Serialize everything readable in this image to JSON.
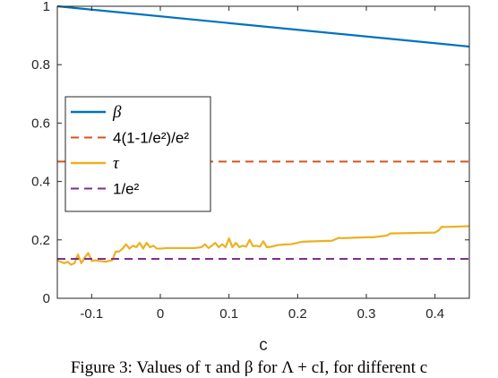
{
  "chart_data": {
    "type": "line",
    "xlabel": "c",
    "ylabel": "",
    "xlim": [
      -0.15,
      0.45
    ],
    "ylim": [
      0,
      1
    ],
    "x_ticks": [
      "-0.1",
      "0",
      "0.1",
      "0.2",
      "0.3",
      "0.4"
    ],
    "y_ticks": [
      "0",
      "0.2",
      "0.4",
      "0.6",
      "0.8",
      "1"
    ],
    "grid": false,
    "legend_position": "middle-left",
    "series": [
      {
        "name": "β",
        "color": "#0072BD",
        "style": "solid",
        "x": [
          -0.15,
          0.45
        ],
        "y": [
          1.0,
          0.862
        ]
      },
      {
        "name": "4(1-1/e²)/e²",
        "color": "#D95319",
        "style": "dashed",
        "x": [
          -0.15,
          0.45
        ],
        "y": [
          0.468,
          0.468
        ]
      },
      {
        "name": "τ",
        "color": "#EDB120",
        "style": "solid",
        "x": [
          -0.15,
          -0.14,
          -0.135,
          -0.13,
          -0.125,
          -0.12,
          -0.115,
          -0.11,
          -0.105,
          -0.1,
          -0.095,
          -0.09,
          -0.085,
          -0.08,
          -0.075,
          -0.07,
          -0.065,
          -0.06,
          -0.055,
          -0.05,
          -0.045,
          -0.04,
          -0.035,
          -0.03,
          -0.025,
          -0.02,
          -0.015,
          -0.01,
          -0.005,
          0.0,
          0.01,
          0.03,
          0.05,
          0.06,
          0.065,
          0.07,
          0.075,
          0.08,
          0.085,
          0.09,
          0.095,
          0.1,
          0.105,
          0.11,
          0.115,
          0.12,
          0.125,
          0.13,
          0.135,
          0.14,
          0.145,
          0.15,
          0.155,
          0.16,
          0.165,
          0.17,
          0.18,
          0.19,
          0.2,
          0.205,
          0.21,
          0.25,
          0.26,
          0.265,
          0.3,
          0.31,
          0.33,
          0.335,
          0.4,
          0.405,
          0.41,
          0.415,
          0.45
        ],
        "y": [
          0.13,
          0.12,
          0.125,
          0.115,
          0.12,
          0.15,
          0.12,
          0.14,
          0.155,
          0.128,
          0.13,
          0.128,
          0.127,
          0.125,
          0.128,
          0.13,
          0.16,
          0.16,
          0.17,
          0.185,
          0.17,
          0.18,
          0.175,
          0.19,
          0.17,
          0.19,
          0.175,
          0.18,
          0.17,
          0.17,
          0.172,
          0.172,
          0.172,
          0.175,
          0.185,
          0.172,
          0.18,
          0.19,
          0.175,
          0.185,
          0.175,
          0.205,
          0.175,
          0.19,
          0.175,
          0.18,
          0.177,
          0.2,
          0.178,
          0.18,
          0.177,
          0.195,
          0.175,
          0.176,
          0.178,
          0.182,
          0.184,
          0.185,
          0.19,
          0.193,
          0.194,
          0.197,
          0.207,
          0.206,
          0.209,
          0.209,
          0.215,
          0.222,
          0.225,
          0.232,
          0.245,
          0.244,
          0.247
        ]
      },
      {
        "name": "1/e²",
        "color": "#7E2F8E",
        "style": "dashed",
        "x": [
          -0.15,
          0.45
        ],
        "y": [
          0.135,
          0.135
        ]
      }
    ]
  },
  "caption": {
    "text": "Figure 3:  Values of τ and β for Λ + cI, for different c"
  }
}
